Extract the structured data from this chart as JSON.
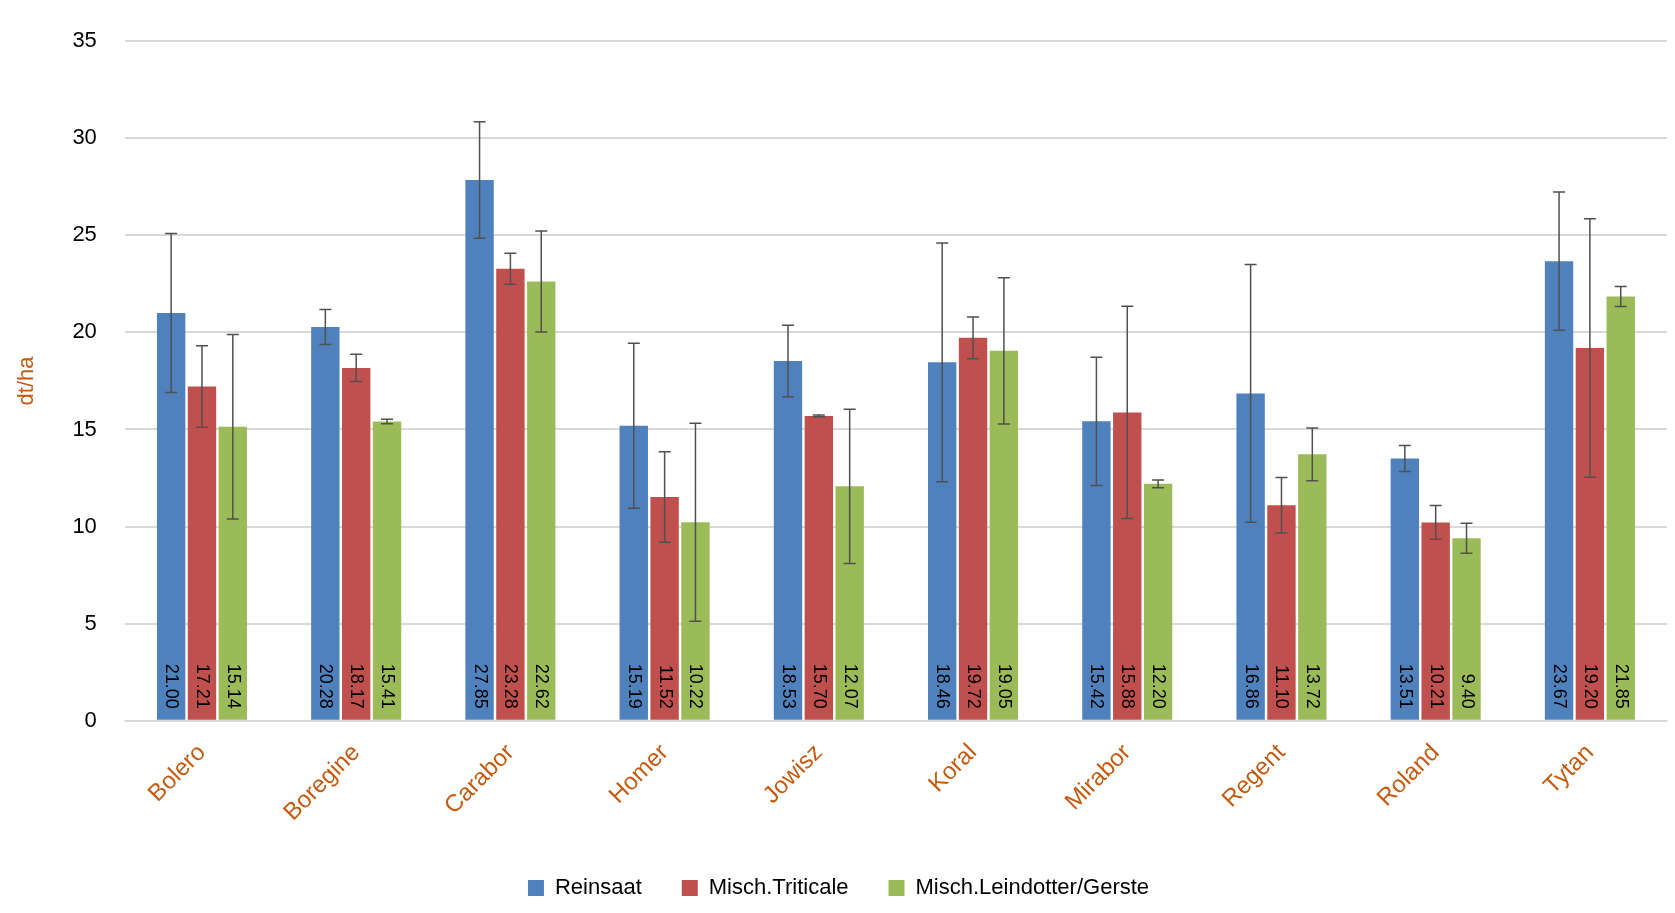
{
  "chart_data": {
    "type": "bar",
    "ylabel": "dt/ha",
    "categories": [
      "Bolero",
      "Boregine",
      "Carabor",
      "Homer",
      "Jowisz",
      "Koral",
      "Mirabor",
      "Regent",
      "Roland",
      "Tytan"
    ],
    "series": [
      {
        "name": "Reinsaat",
        "color": "#4f81bd",
        "values": [
          21.0,
          20.28,
          27.85,
          15.19,
          18.53,
          18.46,
          15.42,
          16.86,
          13.51,
          23.67
        ],
        "errors": [
          4.1,
          0.9,
          3.0,
          4.25,
          1.84,
          6.15,
          3.3,
          6.64,
          0.67,
          3.56
        ],
        "value_labels": [
          "21.00",
          "20.28",
          "27.85",
          "15.19",
          "18.53",
          "18.46",
          "15.42",
          "16.86",
          "13.51",
          "23.67"
        ]
      },
      {
        "name": "Misch.Triticale",
        "color": "#c0504d",
        "values": [
          17.21,
          18.17,
          23.28,
          11.52,
          15.7,
          19.72,
          15.88,
          11.1,
          10.21,
          19.2
        ],
        "errors": [
          2.1,
          0.7,
          0.8,
          2.33,
          0.05,
          1.08,
          5.47,
          1.43,
          0.87,
          6.66
        ],
        "value_labels": [
          "17.21",
          "18.17",
          "23.28",
          "11.52",
          "15.70",
          "19.72",
          "15.88",
          "11.10",
          "10.21",
          "19.20"
        ]
      },
      {
        "name": "Misch.Leindotter/Gerste",
        "color": "#9bbb59",
        "values": [
          15.14,
          15.41,
          22.62,
          10.22,
          12.07,
          19.05,
          12.2,
          13.72,
          9.4,
          21.85
        ],
        "errors": [
          4.75,
          0.12,
          2.6,
          5.1,
          3.97,
          3.77,
          0.2,
          1.36,
          0.77,
          0.51
        ],
        "value_labels": [
          "15.14",
          "15.41",
          "22.62",
          "10.22",
          "12.07",
          "19.05",
          "12.20",
          "13.72",
          "9.40",
          "21.85"
        ]
      }
    ],
    "ylim": [
      0,
      35
    ],
    "yticks": [
      0,
      5,
      10,
      15,
      20,
      25,
      30,
      35
    ],
    "grid": "y",
    "legend": "bottom"
  }
}
